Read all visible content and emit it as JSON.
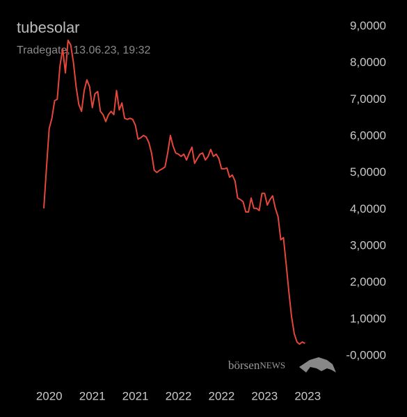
{
  "chart_data": {
    "type": "line",
    "title": "tubesolar",
    "subtitle": "Tradegate, 13.06.23, 19:32",
    "logo": [
      "börsen",
      "NEWS"
    ],
    "series": [
      {
        "color": "#e5473b",
        "values": [
          4.03,
          5.16,
          6.21,
          6.49,
          6.97,
          7.01,
          7.92,
          8.39,
          7.73,
          8.62,
          8.49,
          8.01,
          7.35,
          6.87,
          6.68,
          7.25,
          7.54,
          7.35,
          6.78,
          7.16,
          7.22,
          6.68,
          6.59,
          6.4,
          6.59,
          6.68,
          6.59,
          7.25,
          6.72,
          6.91,
          6.49,
          6.46,
          6.49,
          6.46,
          6.3,
          5.92,
          5.96,
          6.02,
          5.98,
          5.83,
          5.54,
          5.07,
          5.01,
          5.07,
          5.11,
          5.16,
          5.54,
          6.02,
          5.73,
          5.54,
          5.51,
          5.45,
          5.51,
          5.35,
          5.54,
          5.7,
          5.26,
          5.39,
          5.51,
          5.54,
          5.35,
          5.45,
          5.64,
          5.45,
          5.51,
          5.39,
          5.11,
          5.11,
          5.13,
          4.88,
          4.94,
          4.78,
          4.31,
          4.27,
          4.21,
          3.93,
          3.93,
          4.31,
          4.03,
          4.03,
          3.97,
          4.44,
          4.44,
          4.12,
          4.27,
          4.37,
          4.03,
          3.8,
          3.17,
          3.23,
          2.51,
          1.75,
          1.08,
          0.61,
          0.38,
          0.32,
          0.38,
          0.34
        ]
      }
    ],
    "xlim": [
      0,
      100
    ],
    "xticks": [
      {
        "value": 2,
        "label": "2020"
      },
      {
        "value": 18,
        "label": "2021"
      },
      {
        "value": 34,
        "label": "2021"
      },
      {
        "value": 50,
        "label": "2022"
      },
      {
        "value": 66,
        "label": "2022"
      },
      {
        "value": 82,
        "label": "2023"
      },
      {
        "value": 98,
        "label": "2023"
      }
    ],
    "ylim": [
      0,
      9
    ],
    "yticks": [
      {
        "value": 0,
        "label": "-0,0000"
      },
      {
        "value": 1,
        "label": "1,0000"
      },
      {
        "value": 2,
        "label": "2,0000"
      },
      {
        "value": 3,
        "label": "3,0000"
      },
      {
        "value": 4,
        "label": "4,0000"
      },
      {
        "value": 5,
        "label": "5,0000"
      },
      {
        "value": 6,
        "label": "6,0000"
      },
      {
        "value": 7,
        "label": "7,0000"
      },
      {
        "value": 8,
        "label": "8,0000"
      },
      {
        "value": 9,
        "label": "9,0000"
      }
    ]
  }
}
